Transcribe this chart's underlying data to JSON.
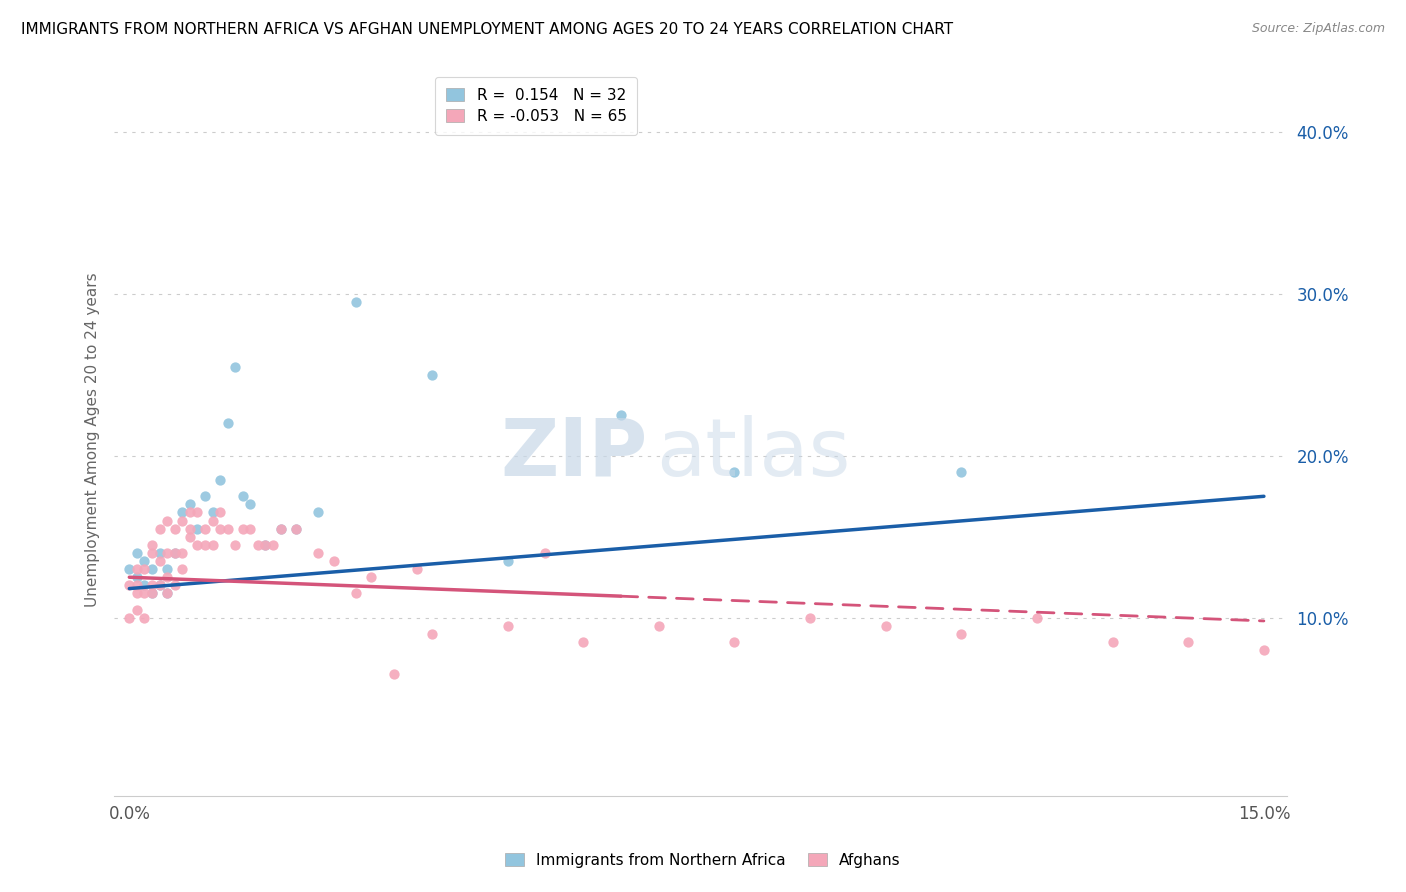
{
  "title": "IMMIGRANTS FROM NORTHERN AFRICA VS AFGHAN UNEMPLOYMENT AMONG AGES 20 TO 24 YEARS CORRELATION CHART",
  "source": "Source: ZipAtlas.com",
  "ylabel": "Unemployment Among Ages 20 to 24 years",
  "xlim": [
    -0.002,
    0.153
  ],
  "ylim": [
    -0.01,
    0.43
  ],
  "ytick_labels": [
    "10.0%",
    "20.0%",
    "30.0%",
    "40.0%"
  ],
  "ytick_values": [
    0.1,
    0.2,
    0.3,
    0.4
  ],
  "xtick_labels": [
    "0.0%",
    "15.0%"
  ],
  "xtick_values": [
    0.0,
    0.15
  ],
  "legend_r1": "R =  0.154   N = 32",
  "legend_r2": "R = -0.053   N = 65",
  "color_blue": "#92c5de",
  "color_pink": "#f4a7b9",
  "color_trendline_blue": "#1a5ea8",
  "color_trendline_pink": "#d4547a",
  "blue_scatter_x": [
    0.0,
    0.001,
    0.001,
    0.002,
    0.002,
    0.003,
    0.003,
    0.004,
    0.004,
    0.005,
    0.005,
    0.006,
    0.007,
    0.008,
    0.009,
    0.01,
    0.011,
    0.012,
    0.013,
    0.014,
    0.015,
    0.016,
    0.018,
    0.02,
    0.022,
    0.025,
    0.03,
    0.04,
    0.05,
    0.065,
    0.08,
    0.11
  ],
  "blue_scatter_y": [
    0.13,
    0.125,
    0.14,
    0.12,
    0.135,
    0.115,
    0.13,
    0.14,
    0.12,
    0.13,
    0.115,
    0.14,
    0.165,
    0.17,
    0.155,
    0.175,
    0.165,
    0.185,
    0.22,
    0.255,
    0.175,
    0.17,
    0.145,
    0.155,
    0.155,
    0.165,
    0.295,
    0.25,
    0.135,
    0.225,
    0.19,
    0.19
  ],
  "pink_scatter_x": [
    0.0,
    0.0,
    0.001,
    0.001,
    0.001,
    0.001,
    0.002,
    0.002,
    0.002,
    0.003,
    0.003,
    0.003,
    0.003,
    0.004,
    0.004,
    0.004,
    0.005,
    0.005,
    0.005,
    0.005,
    0.006,
    0.006,
    0.006,
    0.007,
    0.007,
    0.007,
    0.008,
    0.008,
    0.008,
    0.009,
    0.009,
    0.01,
    0.01,
    0.011,
    0.011,
    0.012,
    0.012,
    0.013,
    0.014,
    0.015,
    0.016,
    0.017,
    0.018,
    0.019,
    0.02,
    0.022,
    0.025,
    0.027,
    0.03,
    0.032,
    0.035,
    0.038,
    0.04,
    0.05,
    0.055,
    0.06,
    0.07,
    0.08,
    0.09,
    0.1,
    0.11,
    0.12,
    0.13,
    0.14,
    0.15
  ],
  "pink_scatter_y": [
    0.12,
    0.1,
    0.115,
    0.13,
    0.105,
    0.12,
    0.115,
    0.13,
    0.1,
    0.115,
    0.14,
    0.12,
    0.145,
    0.12,
    0.135,
    0.155,
    0.125,
    0.14,
    0.115,
    0.16,
    0.14,
    0.12,
    0.155,
    0.14,
    0.16,
    0.13,
    0.15,
    0.155,
    0.165,
    0.145,
    0.165,
    0.155,
    0.145,
    0.16,
    0.145,
    0.155,
    0.165,
    0.155,
    0.145,
    0.155,
    0.155,
    0.145,
    0.145,
    0.145,
    0.155,
    0.155,
    0.14,
    0.135,
    0.115,
    0.125,
    0.065,
    0.13,
    0.09,
    0.095,
    0.14,
    0.085,
    0.095,
    0.085,
    0.1,
    0.095,
    0.09,
    0.1,
    0.085,
    0.085,
    0.08
  ],
  "watermark_zip": "ZIP",
  "watermark_atlas": "atlas"
}
